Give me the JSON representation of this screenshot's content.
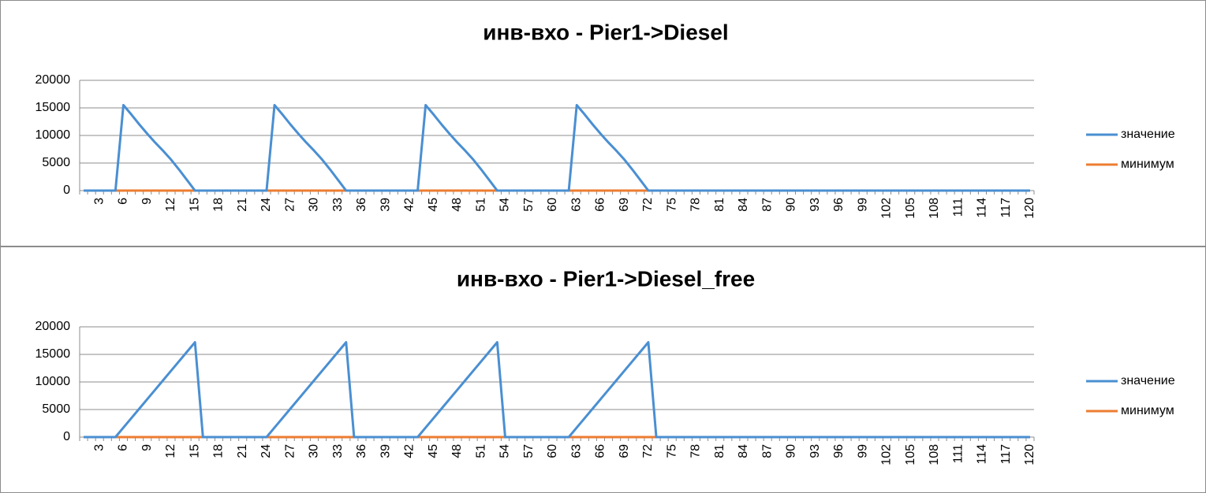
{
  "chart_data": [
    {
      "type": "line",
      "title": "инв-вхо - Pier1->Diesel",
      "categories": [
        null,
        null,
        3,
        null,
        null,
        6,
        null,
        null,
        9,
        null,
        null,
        12,
        null,
        null,
        15,
        null,
        null,
        18,
        null,
        null,
        21,
        null,
        null,
        24,
        null,
        null,
        27,
        null,
        null,
        30,
        null,
        null,
        33,
        null,
        null,
        36,
        null,
        null,
        39,
        null,
        null,
        42,
        null,
        null,
        45,
        null,
        null,
        48,
        null,
        null,
        51,
        null,
        null,
        54,
        null,
        null,
        57,
        null,
        null,
        60,
        null,
        null,
        63,
        null,
        null,
        66,
        null,
        null,
        69,
        null,
        null,
        72,
        null,
        null,
        75,
        null,
        null,
        78,
        null,
        null,
        81,
        null,
        null,
        84,
        null,
        null,
        87,
        null,
        null,
        90,
        null,
        null,
        93,
        null,
        null,
        96,
        null,
        null,
        99,
        null,
        null,
        102,
        null,
        null,
        105,
        null,
        null,
        108,
        null,
        null,
        111,
        null,
        null,
        114,
        null,
        null,
        117,
        null,
        null,
        120
      ],
      "series": [
        {
          "name": "значение",
          "color": "#4a8fd2",
          "values": [
            0,
            0,
            0,
            0,
            0,
            15500,
            13800,
            12000,
            10300,
            8700,
            7200,
            5600,
            3800,
            1900,
            0,
            0,
            0,
            0,
            0,
            0,
            0,
            0,
            0,
            0,
            15500,
            13800,
            12000,
            10300,
            8700,
            7200,
            5600,
            3800,
            1900,
            0,
            0,
            0,
            0,
            0,
            0,
            0,
            0,
            0,
            0,
            15500,
            13800,
            12000,
            10300,
            8700,
            7200,
            5600,
            3800,
            1900,
            0,
            0,
            0,
            0,
            0,
            0,
            0,
            0,
            0,
            0,
            15500,
            13800,
            12000,
            10300,
            8700,
            7200,
            5600,
            3800,
            1900,
            0,
            0,
            0,
            0,
            0,
            0,
            0,
            0,
            0,
            0,
            0,
            0,
            0,
            0,
            0,
            0,
            0,
            0,
            0,
            0,
            0,
            0,
            0,
            0,
            0,
            0,
            0,
            0,
            0,
            0,
            0,
            0,
            0,
            0,
            0,
            0,
            0,
            0,
            0,
            0,
            0,
            0,
            0,
            0,
            0,
            0,
            0,
            0,
            0
          ]
        },
        {
          "name": "минимум",
          "color": "#ed7d31",
          "values": [
            0,
            0,
            0,
            0,
            0,
            0,
            0,
            0,
            0,
            0,
            0,
            0,
            0,
            0,
            0,
            0,
            0,
            0,
            0,
            0,
            0,
            0,
            0,
            0,
            0,
            0,
            0,
            0,
            0,
            0,
            0,
            0,
            0,
            0,
            0,
            0,
            0,
            0,
            0,
            0,
            0,
            0,
            0,
            0,
            0,
            0,
            0,
            0,
            0,
            0,
            0,
            0,
            0,
            0,
            0,
            0,
            0,
            0,
            0,
            0,
            0,
            0,
            0,
            0,
            0,
            0,
            0,
            0,
            0,
            0,
            0,
            0,
            0,
            0,
            0,
            0,
            0,
            0,
            0,
            0,
            0,
            0,
            0,
            0,
            0,
            0,
            0,
            0,
            0,
            0,
            0,
            0,
            0,
            0,
            0,
            0,
            0,
            0,
            0,
            0,
            0,
            0,
            0,
            0,
            0,
            0,
            0,
            0,
            0,
            0,
            0,
            0,
            0,
            0,
            0,
            0,
            0,
            0,
            0,
            0
          ]
        }
      ],
      "ylim": [
        0,
        20000
      ],
      "yticks": [
        0,
        5000,
        10000,
        15000,
        20000
      ],
      "grid": true,
      "legend": "right"
    },
    {
      "type": "line",
      "title": "инв-вхо - Pier1->Diesel_free",
      "categories": [
        null,
        null,
        3,
        null,
        null,
        6,
        null,
        null,
        9,
        null,
        null,
        12,
        null,
        null,
        15,
        null,
        null,
        18,
        null,
        null,
        21,
        null,
        null,
        24,
        null,
        null,
        27,
        null,
        null,
        30,
        null,
        null,
        33,
        null,
        null,
        36,
        null,
        null,
        39,
        null,
        null,
        42,
        null,
        null,
        45,
        null,
        null,
        48,
        null,
        null,
        51,
        null,
        null,
        54,
        null,
        null,
        57,
        null,
        null,
        60,
        null,
        null,
        63,
        null,
        null,
        66,
        null,
        null,
        69,
        null,
        null,
        72,
        null,
        null,
        75,
        null,
        null,
        78,
        null,
        null,
        81,
        null,
        null,
        84,
        null,
        null,
        87,
        null,
        null,
        90,
        null,
        null,
        93,
        null,
        null,
        96,
        null,
        null,
        99,
        null,
        null,
        102,
        null,
        null,
        105,
        null,
        null,
        108,
        null,
        null,
        111,
        null,
        null,
        114,
        null,
        null,
        117,
        null,
        null,
        120
      ],
      "series": [
        {
          "name": "значение",
          "color": "#4a8fd2",
          "values": [
            0,
            0,
            0,
            0,
            0,
            1720,
            3440,
            5160,
            6880,
            8600,
            10320,
            12040,
            13760,
            15480,
            17200,
            0,
            0,
            0,
            0,
            0,
            0,
            0,
            0,
            0,
            1720,
            3440,
            5160,
            6880,
            8600,
            10320,
            12040,
            13760,
            15480,
            17200,
            0,
            0,
            0,
            0,
            0,
            0,
            0,
            0,
            0,
            1720,
            3440,
            5160,
            6880,
            8600,
            10320,
            12040,
            13760,
            15480,
            17200,
            0,
            0,
            0,
            0,
            0,
            0,
            0,
            0,
            0,
            1720,
            3440,
            5160,
            6880,
            8600,
            10320,
            12040,
            13760,
            15480,
            17200,
            0,
            0,
            0,
            0,
            0,
            0,
            0,
            0,
            0,
            0,
            0,
            0,
            0,
            0,
            0,
            0,
            0,
            0,
            0,
            0,
            0,
            0,
            0,
            0,
            0,
            0,
            0,
            0,
            0,
            0,
            0,
            0,
            0,
            0,
            0,
            0,
            0,
            0,
            0,
            0,
            0,
            0,
            0,
            0,
            0,
            0,
            0,
            0
          ]
        },
        {
          "name": "минимум",
          "color": "#ed7d31",
          "values": [
            0,
            0,
            0,
            0,
            0,
            0,
            0,
            0,
            0,
            0,
            0,
            0,
            0,
            0,
            0,
            0,
            0,
            0,
            0,
            0,
            0,
            0,
            0,
            0,
            0,
            0,
            0,
            0,
            0,
            0,
            0,
            0,
            0,
            0,
            0,
            0,
            0,
            0,
            0,
            0,
            0,
            0,
            0,
            0,
            0,
            0,
            0,
            0,
            0,
            0,
            0,
            0,
            0,
            0,
            0,
            0,
            0,
            0,
            0,
            0,
            0,
            0,
            0,
            0,
            0,
            0,
            0,
            0,
            0,
            0,
            0,
            0,
            0,
            0,
            0,
            0,
            0,
            0,
            0,
            0,
            0,
            0,
            0,
            0,
            0,
            0,
            0,
            0,
            0,
            0,
            0,
            0,
            0,
            0,
            0,
            0,
            0,
            0,
            0,
            0,
            0,
            0,
            0,
            0,
            0,
            0,
            0,
            0,
            0,
            0,
            0,
            0,
            0,
            0,
            0,
            0,
            0,
            0,
            0,
            0
          ]
        }
      ],
      "ylim": [
        0,
        20000
      ],
      "yticks": [
        0,
        5000,
        10000,
        15000,
        20000
      ],
      "grid": true,
      "legend": "right"
    }
  ]
}
